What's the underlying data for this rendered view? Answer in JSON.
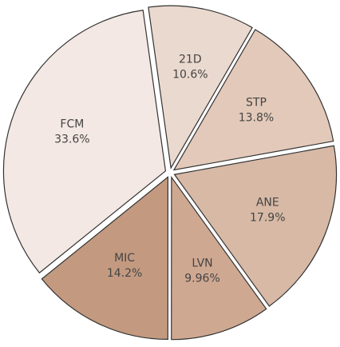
{
  "chart_data": {
    "type": "pie",
    "categories": [
      "21D",
      "STP",
      "ANE",
      "LVN",
      "MIC",
      "FCM"
    ],
    "values": [
      10.6,
      13.8,
      17.9,
      9.96,
      14.2,
      33.6
    ],
    "value_labels": [
      "10.6%",
      "13.8%",
      "17.9%",
      "9.96%",
      "14.2%",
      "33.6%"
    ],
    "colors": [
      "#ead9cf",
      "#e3c9b9",
      "#d7b9a6",
      "#cfa892",
      "#c39a80",
      "#f3e8e3"
    ]
  }
}
